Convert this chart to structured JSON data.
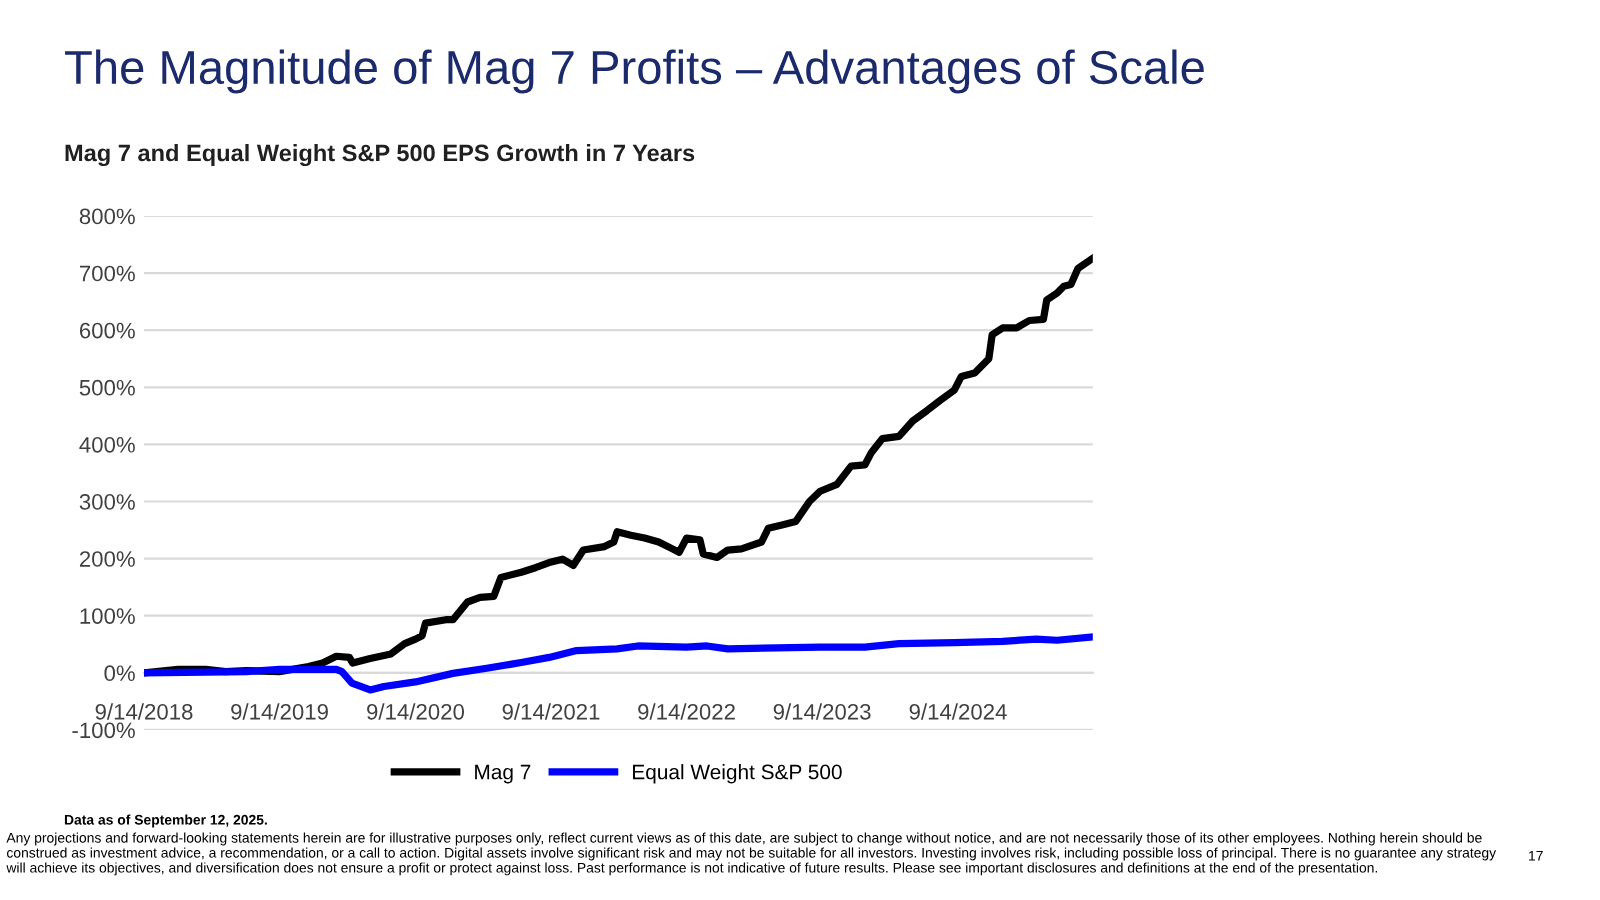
{
  "chart_data": {
    "type": "line",
    "title": "The Magnitude of Mag 7 Profits – Advantages of Scale",
    "subtitle": "Mag 7 and Equal Weight S&P 500 EPS Growth in 7 Years",
    "annotations": [
      "Data as of September 12, 2025.",
      "Any projections and forward-looking statements herein are for illustrative purposes only, reflect current views as of this date, are subject to change without notice, and are not necessarily those of its other employees. Nothing herein should be construed as investment advice, a recommendation, or a call to action. Digital assets involve significant risk and may not be suitable for all investors. Investing involves risk, including possible loss of principal. There is no guarantee any strategy will achieve its objectives, and diversification does not ensure a profit or protect against loss. Past performance is not indicative of future results. Please see important disclosures and definitions at the end of the presentation.",
      "17"
    ],
    "series": [
      {
        "name": "Mag 7",
        "color": "#000000",
        "x": [
          "2018-09-14",
          "2018-12-15",
          "2019-02-27",
          "2019-04-22",
          "2019-06-17",
          "2019-09-14",
          "2019-12-01",
          "2020-01-08",
          "2020-02-14",
          "2020-03-20",
          "2020-03-29",
          "2020-05-15",
          "2020-07-10",
          "2020-08-16",
          "2020-09-14",
          "2020-10-02",
          "2020-10-11",
          "2020-12-05",
          "2020-12-24",
          "2021-02-01",
          "2021-03-07",
          "2021-04-13",
          "2021-05-02",
          "2021-06-26",
          "2021-08-03",
          "2021-09-09",
          "2021-10-15",
          "2021-11-13",
          "2021-12-10",
          "2022-02-05",
          "2022-03-02",
          "2022-03-11",
          "2022-04-17",
          "2022-05-24",
          "2022-07-01",
          "2022-08-07",
          "2022-08-25",
          "2022-09-14",
          "2022-10-20",
          "2022-10-29",
          "2022-12-05",
          "2023-01-03",
          "2023-02-09",
          "2023-04-04",
          "2023-04-22",
          "2023-05-29",
          "2023-07-05",
          "2023-08-11",
          "2023-09-09",
          "2023-10-24",
          "2023-12-01",
          "2024-01-07",
          "2024-01-25",
          "2024-02-23",
          "2024-04-08",
          "2024-05-15",
          "2024-06-22",
          "2024-07-28",
          "2024-09-04",
          "2024-09-23",
          "2024-10-29",
          "2024-12-06",
          "2024-12-15",
          "2025-01-12",
          "2025-02-19",
          "2025-03-25",
          "2025-05-02",
          "2025-05-11",
          "2025-06-08",
          "2025-06-26",
          "2025-07-15",
          "2025-08-03",
          "2025-09-12"
        ],
        "values": [
          0,
          6,
          6,
          2,
          4,
          2,
          11,
          17,
          29,
          27,
          17,
          25,
          33,
          51,
          59,
          65,
          87,
          93,
          93,
          124,
          132,
          134,
          167,
          176,
          184,
          193,
          199,
          188,
          215,
          221,
          229,
          247,
          241,
          236,
          229,
          217,
          211,
          236,
          233,
          208,
          202,
          215,
          217,
          229,
          253,
          259,
          265,
          300,
          318,
          330,
          362,
          364,
          386,
          410,
          414,
          441,
          459,
          477,
          495,
          519,
          525,
          550,
          592,
          604,
          604,
          617,
          619,
          653,
          665,
          677,
          680,
          708,
          726
        ]
      },
      {
        "name": "Equal Weight S&P 500",
        "color": "#0000ff",
        "x": [
          "2018-09-14",
          "2019-06-17",
          "2019-09-14",
          "2020-02-14",
          "2020-02-29",
          "2020-03-27",
          "2020-05-15",
          "2020-06-21",
          "2020-09-14",
          "2020-12-24",
          "2021-03-25",
          "2021-06-26",
          "2021-09-09",
          "2021-11-22",
          "2022-03-11",
          "2022-05-06",
          "2022-09-14",
          "2022-11-08",
          "2023-01-03",
          "2023-09-09",
          "2024-01-07",
          "2024-04-08",
          "2024-09-04",
          "2025-01-12",
          "2025-04-13",
          "2025-06-08",
          "2025-09-12"
        ],
        "values": [
          0,
          2,
          6,
          6,
          2,
          -18,
          -30,
          -24,
          -16,
          -1,
          8,
          18,
          27,
          39,
          42,
          47,
          45,
          47,
          42,
          45,
          45,
          51,
          53,
          55,
          59,
          57,
          63
        ]
      }
    ],
    "xlim": [
      "2018-09-14",
      "2025-09-12"
    ],
    "xticks": [
      {
        "value": "2018-09-14",
        "label": "9/14/2018"
      },
      {
        "value": "2019-09-14",
        "label": "9/14/2019"
      },
      {
        "value": "2020-09-14",
        "label": "9/14/2020"
      },
      {
        "value": "2021-09-14",
        "label": "9/14/2021"
      },
      {
        "value": "2022-09-14",
        "label": "9/14/2022"
      },
      {
        "value": "2023-09-14",
        "label": "9/14/2023"
      },
      {
        "value": "2024-09-14",
        "label": "9/14/2024"
      }
    ],
    "ylim": [
      -100,
      800
    ],
    "yticks": [
      {
        "value": -100,
        "label": "-100%"
      },
      {
        "value": 0,
        "label": "0%"
      },
      {
        "value": 100,
        "label": "100%"
      },
      {
        "value": 200,
        "label": "200%"
      },
      {
        "value": 300,
        "label": "300%"
      },
      {
        "value": 400,
        "label": "400%"
      },
      {
        "value": 500,
        "label": "500%"
      },
      {
        "value": 600,
        "label": "600%"
      },
      {
        "value": 700,
        "label": "700%"
      },
      {
        "value": 800,
        "label": "800%"
      }
    ],
    "grid": "y",
    "legend": "bottom",
    "line_style": "solid",
    "marker": "none"
  }
}
